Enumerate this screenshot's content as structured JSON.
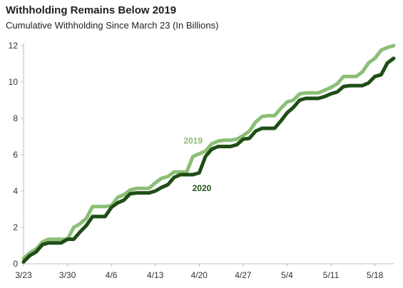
{
  "chart_data": {
    "type": "line",
    "title": "Withholding Remains Below 2019",
    "subtitle": "Cumulative Withholding Since March 23 (In Billions)",
    "xlabel": "",
    "ylabel": "",
    "x_ticks": [
      "3/23",
      "3/30",
      "4/6",
      "4/13",
      "4/20",
      "4/27",
      "5/4",
      "5/11",
      "5/18"
    ],
    "y_ticks": [
      0,
      2,
      4,
      6,
      8,
      10,
      12
    ],
    "xlim": [
      0,
      59
    ],
    "ylim": [
      0,
      12
    ],
    "grid": false,
    "series": [
      {
        "name": "2019",
        "color": "#8cbf76",
        "x": [
          0,
          1,
          2,
          3,
          4,
          5,
          6,
          7,
          8,
          9,
          10,
          11,
          12,
          13,
          14,
          15,
          16,
          17,
          18,
          19,
          20,
          21,
          22,
          23,
          24,
          25,
          26,
          27,
          28,
          29,
          30,
          31,
          32,
          33,
          34,
          35,
          36,
          37,
          38,
          39,
          40,
          41,
          42,
          43,
          44,
          45,
          46,
          47,
          48,
          49,
          50,
          51,
          52,
          53,
          54,
          55,
          56,
          57,
          58,
          59
        ],
        "values": [
          0.3,
          0.6,
          0.8,
          1.2,
          1.35,
          1.35,
          1.35,
          1.35,
          2.0,
          2.2,
          2.5,
          3.15,
          3.15,
          3.15,
          3.2,
          3.65,
          3.8,
          4.05,
          4.15,
          4.15,
          4.15,
          4.45,
          4.7,
          4.8,
          5.05,
          5.05,
          5.05,
          5.9,
          6.05,
          6.2,
          6.6,
          6.75,
          6.8,
          6.8,
          6.85,
          7.05,
          7.3,
          7.8,
          8.1,
          8.15,
          8.15,
          8.55,
          8.9,
          9.0,
          9.35,
          9.4,
          9.4,
          9.4,
          9.55,
          9.7,
          9.9,
          10.3,
          10.3,
          10.3,
          10.55,
          11.05,
          11.3,
          11.75,
          11.9,
          12.0
        ]
      },
      {
        "name": "2020",
        "color": "#1f4e16",
        "x": [
          0,
          1,
          2,
          3,
          4,
          5,
          6,
          7,
          8,
          9,
          10,
          11,
          12,
          13,
          14,
          15,
          16,
          17,
          18,
          19,
          20,
          21,
          22,
          23,
          24,
          25,
          26,
          27,
          28,
          29,
          30,
          31,
          32,
          33,
          34,
          35,
          36,
          37,
          38,
          39,
          40,
          41,
          42,
          43,
          44,
          45,
          46,
          47,
          48,
          49,
          50,
          51,
          52,
          53,
          54,
          55,
          56,
          57,
          58,
          59
        ],
        "values": [
          0.1,
          0.45,
          0.65,
          1.05,
          1.15,
          1.15,
          1.15,
          1.35,
          1.35,
          1.75,
          2.1,
          2.6,
          2.6,
          2.6,
          3.1,
          3.35,
          3.5,
          3.85,
          3.9,
          3.9,
          3.9,
          4.0,
          4.2,
          4.35,
          4.75,
          4.9,
          4.9,
          4.9,
          5.0,
          5.9,
          6.3,
          6.45,
          6.45,
          6.45,
          6.55,
          6.85,
          6.9,
          7.3,
          7.45,
          7.45,
          7.45,
          7.85,
          8.3,
          8.6,
          9.0,
          9.1,
          9.1,
          9.1,
          9.2,
          9.35,
          9.45,
          9.75,
          9.8,
          9.8,
          9.8,
          9.95,
          10.3,
          10.4,
          11.05,
          11.3
        ]
      }
    ]
  }
}
